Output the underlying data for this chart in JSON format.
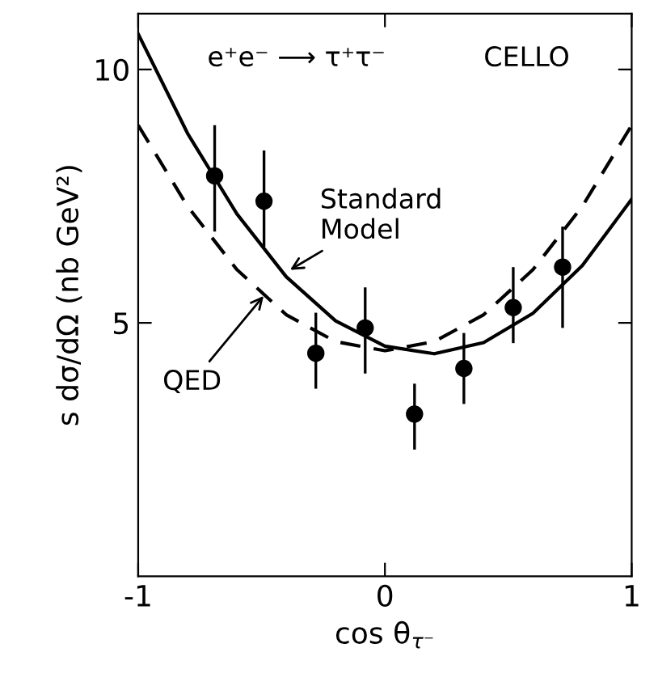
{
  "chart_data": {
    "type": "scatter",
    "xlabel": "cos θ$_{τ⁻}$",
    "ylabel": "s dσ/dΩ (nb GeV²)",
    "annotations": [
      "e⁺e⁻ ⟶ τ⁺τ⁻",
      "CELLO",
      {
        "text": "Standard\nModel",
        "x": -0.4,
        "y": 6.0
      },
      {
        "text": "QED",
        "x": -0.48,
        "y": 5.6
      }
    ],
    "series": [
      {
        "color": "#000000",
        "marker": "circle",
        "x": [
          -0.69,
          -0.49,
          -0.28,
          -0.08,
          0.12,
          0.32,
          0.52,
          0.72
        ],
        "values": [
          7.9,
          7.4,
          4.4,
          4.9,
          3.2,
          4.1,
          5.3,
          6.1
        ],
        "errors": [
          [
            6.8,
            8.9
          ],
          [
            6.5,
            8.4
          ],
          [
            3.7,
            5.2
          ],
          [
            4.0,
            5.7
          ],
          [
            2.5,
            3.8
          ],
          [
            3.4,
            4.8
          ],
          [
            4.6,
            6.1
          ],
          [
            4.9,
            6.9
          ]
        ]
      },
      {
        "type": "line",
        "color": "#000000",
        "line_style": "solid",
        "marker": "none",
        "x": [
          -1,
          -0.8,
          -0.6,
          -0.4,
          -0.2,
          0,
          0.2,
          0.4,
          0.6,
          0.8,
          1
        ],
        "values": [
          10.7,
          8.74,
          7.15,
          5.91,
          5.04,
          4.54,
          4.39,
          4.61,
          5.19,
          6.13,
          7.44
        ]
      },
      {
        "type": "line",
        "color": "#000000",
        "line_style": "dashed",
        "marker": "none",
        "x": [
          -1,
          -0.8,
          -0.6,
          -0.4,
          -0.2,
          0,
          0.2,
          0.4,
          0.6,
          0.8,
          1
        ],
        "values": [
          8.9,
          7.3,
          6.05,
          5.16,
          4.63,
          4.45,
          4.63,
          5.16,
          6.05,
          7.3,
          8.9
        ]
      }
    ],
    "xlim": [
      -1,
      1
    ],
    "xticks": [
      -1,
      0,
      1
    ],
    "ylim": [
      0,
      11.1
    ],
    "yticks": [
      5,
      10
    ],
    "grid": false,
    "legend": false
  }
}
